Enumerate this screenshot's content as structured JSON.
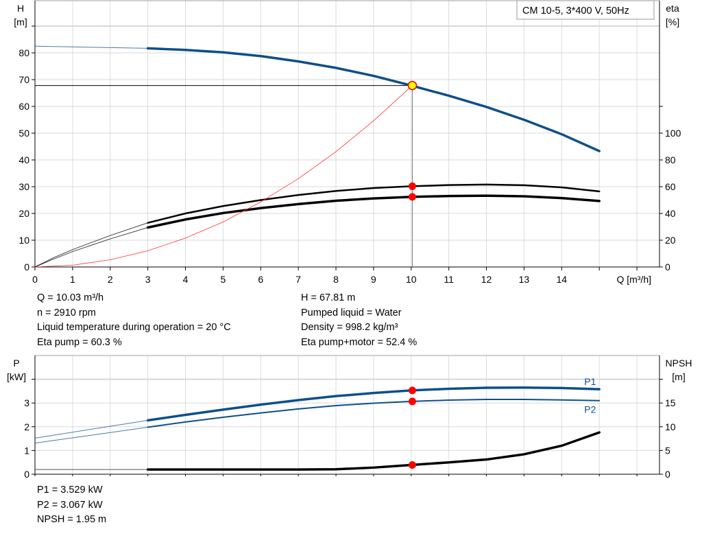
{
  "chart_data": [
    {
      "type": "line",
      "title": "CM 10-5, 3*400 V, 50Hz",
      "xlabel": "Q [m³/h]",
      "xlim": [
        0,
        16.6
      ],
      "xticks": [
        0,
        1,
        2,
        3,
        4,
        5,
        6,
        7,
        8,
        9,
        10,
        11,
        12,
        13,
        14
      ],
      "ylabel_left": [
        "H",
        "[m]"
      ],
      "ylim_left": [
        0,
        99.5
      ],
      "yticks_left": [
        0,
        10,
        20,
        30,
        40,
        50,
        60,
        70,
        80
      ],
      "ylabel_right": [
        "eta",
        "[%]"
      ],
      "ylim_right": [
        0,
        199
      ],
      "yticks_right": [
        0,
        20,
        40,
        60,
        80,
        100
      ],
      "grid": true,
      "series": [
        {
          "key": "H",
          "axis": "left",
          "color": "#0d4f8b",
          "x": [
            0,
            3,
            4,
            5,
            6,
            7,
            8,
            9,
            10,
            11,
            12,
            13,
            14,
            15
          ],
          "y": [
            82.5,
            81.7,
            81.1,
            80.2,
            78.8,
            76.8,
            74.4,
            71.4,
            67.8,
            64,
            59.8,
            55,
            49.6,
            43.3
          ]
        },
        {
          "key": "eta_pump",
          "axis": "right",
          "color": "#000000",
          "x": [
            0,
            0.5,
            1,
            2,
            3,
            4,
            5,
            6,
            7,
            8,
            9,
            10,
            11,
            12,
            13,
            14,
            15
          ],
          "y": [
            0,
            7,
            13,
            23.5,
            33,
            40,
            45.5,
            50,
            53.8,
            56.8,
            59,
            60.3,
            61.2,
            61.6,
            61.1,
            59.5,
            56.5
          ]
        },
        {
          "key": "eta_total",
          "axis": "right",
          "color": "#000000",
          "x": [
            0,
            0.5,
            1,
            2,
            3,
            4,
            5,
            6,
            7,
            8,
            9,
            10,
            11,
            12,
            13,
            14,
            15
          ],
          "y": [
            0,
            6,
            11.5,
            21,
            29.5,
            35.5,
            40.3,
            44,
            47,
            49.5,
            51.2,
            52.4,
            53,
            53.3,
            52.8,
            51.5,
            49.3
          ]
        },
        {
          "key": "system",
          "axis": "left",
          "color": "#ff3030",
          "x": [
            0,
            1,
            2,
            3,
            4,
            5,
            6,
            7,
            8,
            9,
            10.03
          ],
          "y": [
            0,
            0.67,
            2.7,
            6.06,
            10.8,
            16.8,
            24.3,
            33,
            43.1,
            54.6,
            67.81
          ]
        }
      ],
      "operating_point": {
        "Q": 10.03,
        "H": 67.81,
        "eta_pump": 60.3,
        "eta_total": 52.4
      }
    },
    {
      "type": "line",
      "xlim": [
        0,
        16.6
      ],
      "ylabel_left": [
        "P",
        "[kW]"
      ],
      "ylim_left": [
        0,
        5
      ],
      "yticks_left": [
        0,
        1,
        2,
        3
      ],
      "ylabel_right": [
        "NPSH",
        "[m]"
      ],
      "ylim_right": [
        0,
        25
      ],
      "yticks_right": [
        0,
        5,
        10,
        15
      ],
      "grid": true,
      "series": [
        {
          "name": "P1",
          "axis": "left",
          "color": "#0d4f8b",
          "x": [
            0,
            3,
            4,
            5,
            6,
            7,
            8,
            9,
            10,
            11,
            12,
            13,
            14,
            15
          ],
          "y": [
            1.52,
            2.27,
            2.5,
            2.72,
            2.93,
            3.12,
            3.29,
            3.42,
            3.529,
            3.6,
            3.64,
            3.65,
            3.63,
            3.58
          ]
        },
        {
          "name": "P2",
          "axis": "left",
          "color": "#0d4f8b",
          "x": [
            0,
            3,
            4,
            5,
            6,
            7,
            8,
            9,
            10,
            11,
            12,
            13,
            14,
            15
          ],
          "y": [
            1.31,
            1.98,
            2.2,
            2.4,
            2.58,
            2.75,
            2.89,
            2.99,
            3.067,
            3.12,
            3.15,
            3.15,
            3.13,
            3.1
          ]
        },
        {
          "key": "NPSH",
          "axis": "right",
          "color": "#000000",
          "x": [
            0,
            3,
            5,
            7,
            8,
            9,
            10,
            11,
            12,
            13,
            14,
            15
          ],
          "y": [
            1,
            1,
            1,
            1,
            1.05,
            1.4,
            1.95,
            2.5,
            3.1,
            4.2,
            6,
            8.8
          ]
        }
      ],
      "operating_point": {
        "Q": 10.03,
        "P1": 3.529,
        "P2": 3.067,
        "NPSH": 1.95
      }
    }
  ],
  "info_top_left": [
    "Q = 10.03 m³/h",
    "n = 2910 rpm",
    "Liquid temperature during operation = 20 °C",
    "Eta pump = 60.3 %"
  ],
  "info_top_right": [
    "H = 67.81 m",
    "Pumped liquid = Water",
    "Density = 998.2 kg/m³",
    "Eta pump+motor = 52.4 %"
  ],
  "info_bottom": [
    "P1 = 3.529 kW",
    "P2 = 3.067 kW",
    "NPSH = 1.95 m"
  ]
}
